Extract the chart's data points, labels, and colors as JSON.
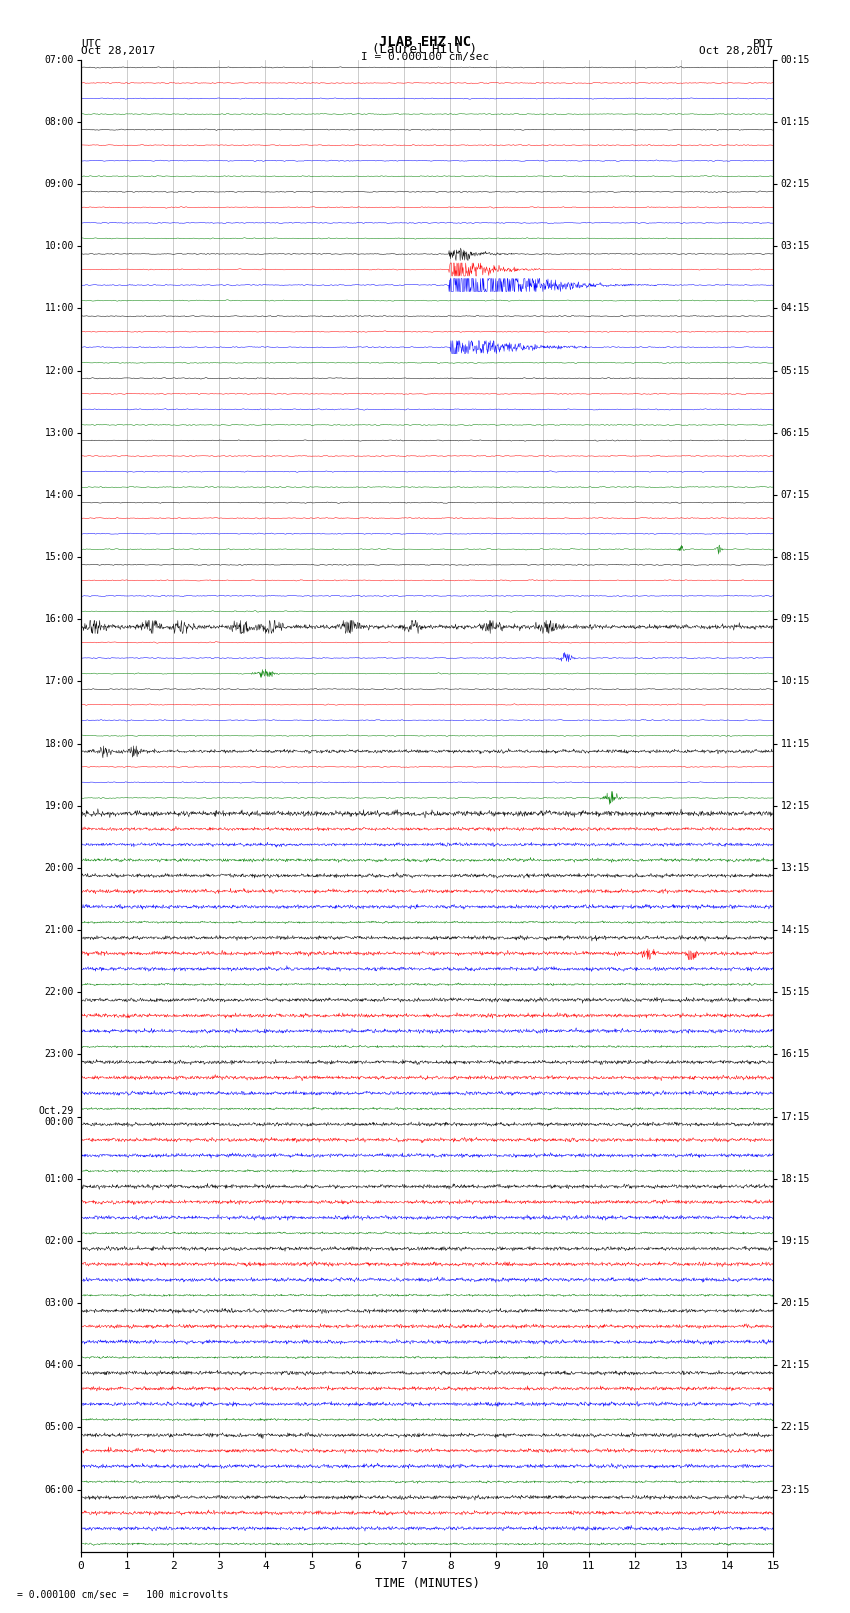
{
  "title_line1": "JLAB EHZ NC",
  "title_line2": "(Laurel Hill )",
  "scale_text": "I = 0.000100 cm/sec",
  "footer_text": "= 0.000100 cm/sec =   100 microvolts",
  "utc_label": "UTC",
  "utc_date": "Oct 28,2017",
  "pdt_label": "PDT",
  "pdt_date": "Oct 28,2017",
  "xlabel": "TIME (MINUTES)",
  "bg_color": "#ffffff",
  "colors": [
    "black",
    "red",
    "blue",
    "green"
  ],
  "left_times": [
    "07:00",
    "08:00",
    "09:00",
    "10:00",
    "11:00",
    "12:00",
    "13:00",
    "14:00",
    "15:00",
    "16:00",
    "17:00",
    "18:00",
    "19:00",
    "20:00",
    "21:00",
    "22:00",
    "23:00",
    "Oct.29\n00:00",
    "01:00",
    "02:00",
    "03:00",
    "04:00",
    "05:00",
    "06:00"
  ],
  "right_times": [
    "00:15",
    "01:15",
    "02:15",
    "03:15",
    "04:15",
    "05:15",
    "06:15",
    "07:15",
    "08:15",
    "09:15",
    "10:15",
    "11:15",
    "12:15",
    "13:15",
    "14:15",
    "15:15",
    "16:15",
    "17:15",
    "18:15",
    "19:15",
    "20:15",
    "21:15",
    "22:15",
    "23:15"
  ],
  "num_rows": 24,
  "traces_per_row": 4,
  "x_min": 0,
  "x_max": 15,
  "noise_amplitude": 0.008,
  "grid_color": "#999999",
  "grid_linewidth": 0.5
}
